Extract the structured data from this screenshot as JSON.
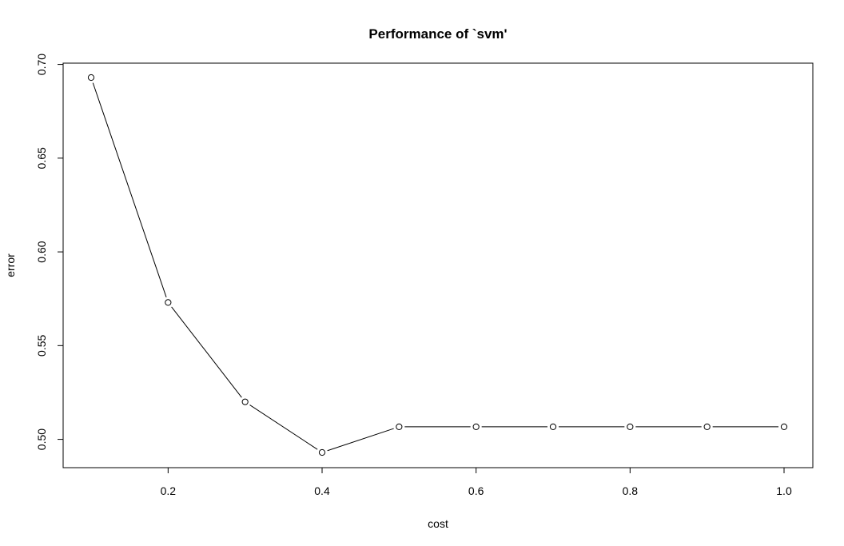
{
  "chart_data": {
    "type": "line",
    "title": "Performance of `svm'",
    "xlabel": "cost",
    "ylabel": "error",
    "xlim": [
      0.1,
      1.0
    ],
    "ylim": [
      0.493,
      0.693
    ],
    "x_ticks": [
      0.2,
      0.4,
      0.6,
      0.8,
      1.0
    ],
    "x_tick_labels": [
      "0.2",
      "0.4",
      "0.6",
      "0.8",
      "1.0"
    ],
    "y_ticks": [
      0.5,
      0.55,
      0.6,
      0.65,
      0.7
    ],
    "y_tick_labels": [
      "0.50",
      "0.55",
      "0.60",
      "0.65",
      "0.70"
    ],
    "grid": false,
    "marker": "open-circle",
    "line_color": "#000000",
    "series": [
      {
        "x": [
          0.1,
          0.2,
          0.3,
          0.4,
          0.5,
          0.6,
          0.7,
          0.8,
          0.9,
          1.0
        ],
        "values": [
          0.693,
          0.573,
          0.52,
          0.493,
          0.5067,
          0.5067,
          0.5067,
          0.5067,
          0.5067,
          0.5067
        ]
      }
    ]
  }
}
